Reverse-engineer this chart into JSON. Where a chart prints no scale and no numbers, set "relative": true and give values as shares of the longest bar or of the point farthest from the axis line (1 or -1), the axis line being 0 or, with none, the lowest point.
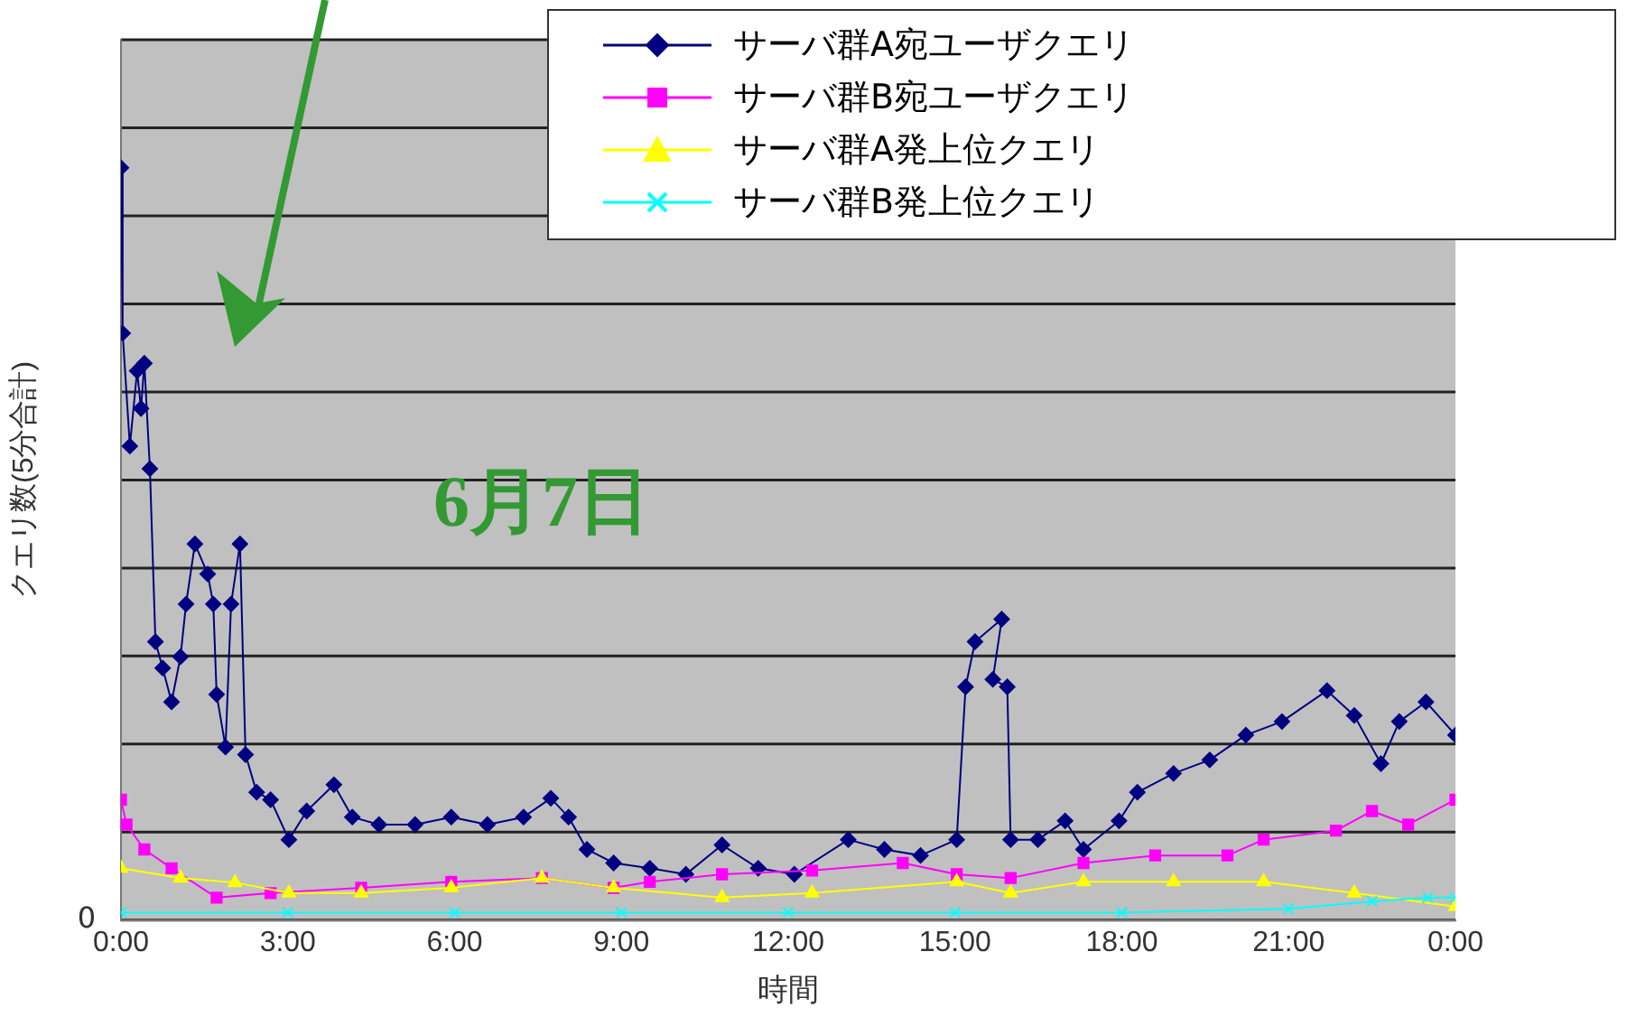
{
  "chart_data": {
    "type": "line",
    "relative": true,
    "xlabel": "時間",
    "ylabel": "クエリ数(5分合計)",
    "annotations": [
      "6月7日",
      "0"
    ],
    "xlim": [
      0,
      24
    ],
    "xticks": [
      {
        "value": 0,
        "label": "0:00"
      },
      {
        "value": 3,
        "label": "3:00"
      },
      {
        "value": 6,
        "label": "6:00"
      },
      {
        "value": 9,
        "label": "9:00"
      },
      {
        "value": 12,
        "label": "12:00"
      },
      {
        "value": 15,
        "label": "15:00"
      },
      {
        "value": 18,
        "label": "18:00"
      },
      {
        "value": 21,
        "label": "21:00"
      },
      {
        "value": 24,
        "label": "0:00"
      }
    ],
    "grid": "y",
    "legend": "top right",
    "line_style": "solid",
    "series": [
      {
        "name": "サーバ群A宛ユーザクエリ",
        "color": "#000080",
        "marker": "diamond",
        "x": [
          0,
          0.03,
          0.16,
          0.29,
          0.36,
          0.42,
          0.52,
          0.62,
          0.75,
          0.91,
          1.07,
          1.17,
          1.33,
          1.56,
          1.66,
          1.72,
          1.88,
          1.98,
          2.14,
          2.24,
          2.44,
          2.69,
          3.02,
          3.34,
          3.83,
          4.16,
          4.64,
          5.29,
          5.94,
          6.59,
          7.24,
          7.73,
          8.05,
          8.38,
          8.86,
          9.51,
          10.16,
          10.81,
          11.46,
          12.11,
          13.08,
          13.73,
          14.38,
          15.03,
          15.19,
          15.36,
          15.84,
          15.68,
          15.94,
          16.0,
          16.49,
          16.98,
          17.31,
          17.95,
          18.28,
          18.93,
          19.58,
          20.23,
          20.88,
          21.69,
          22.18,
          22.66,
          22.99,
          23.47,
          24
        ],
        "values": [
          1.0,
          0.78,
          0.63,
          0.73,
          0.68,
          0.74,
          0.6,
          0.37,
          0.335,
          0.29,
          0.35,
          0.42,
          0.5,
          0.46,
          0.42,
          0.3,
          0.23,
          0.42,
          0.5,
          0.22,
          0.17,
          0.16,
          0.107,
          0.145,
          0.18,
          0.137,
          0.127,
          0.127,
          0.137,
          0.127,
          0.137,
          0.162,
          0.137,
          0.094,
          0.076,
          0.069,
          0.061,
          0.1,
          0.069,
          0.061,
          0.107,
          0.094,
          0.086,
          0.107,
          0.31,
          0.37,
          0.4,
          0.32,
          0.31,
          0.107,
          0.107,
          0.132,
          0.094,
          0.132,
          0.17,
          0.195,
          0.213,
          0.246,
          0.264,
          0.305,
          0.272,
          0.208,
          0.264,
          0.29,
          0.246
        ]
      },
      {
        "name": "サーバ群B宛ユーザクエリ",
        "color": "#ff00ff",
        "marker": "square",
        "x": [
          0,
          0.1,
          0.42,
          0.91,
          1.72,
          2.69,
          4.32,
          5.94,
          7.57,
          8.86,
          9.51,
          10.81,
          12.43,
          14.06,
          15.03,
          16.0,
          17.31,
          18.6,
          19.9,
          20.55,
          21.85,
          22.5,
          23.15,
          24
        ],
        "values": [
          0.16,
          0.127,
          0.094,
          0.069,
          0.03,
          0.036,
          0.043,
          0.051,
          0.056,
          0.043,
          0.051,
          0.061,
          0.066,
          0.076,
          0.061,
          0.056,
          0.076,
          0.086,
          0.086,
          0.107,
          0.119,
          0.145,
          0.127,
          0.16
        ]
      },
      {
        "name": "サーバ群A発上位クエリ",
        "color": "#ffff00",
        "marker": "triangle",
        "x": [
          0,
          1.07,
          2.05,
          3.02,
          4.32,
          5.94,
          7.57,
          8.86,
          10.81,
          12.43,
          15.03,
          16.0,
          17.31,
          18.93,
          20.55,
          22.18,
          24
        ],
        "values": [
          0.069,
          0.056,
          0.05,
          0.036,
          0.036,
          0.043,
          0.056,
          0.043,
          0.03,
          0.036,
          0.051,
          0.036,
          0.051,
          0.051,
          0.051,
          0.036,
          0.018
        ]
      },
      {
        "name": "サーバ群B発上位クエリ",
        "color": "#00ffff",
        "marker": "cross",
        "x": [
          0,
          3,
          6,
          9,
          12,
          15,
          18,
          21,
          22.5,
          23.5,
          24
        ],
        "values": [
          0.01,
          0.01,
          0.01,
          0.01,
          0.01,
          0.01,
          0.01,
          0.015,
          0.025,
          0.03,
          0.03
        ]
      }
    ]
  }
}
